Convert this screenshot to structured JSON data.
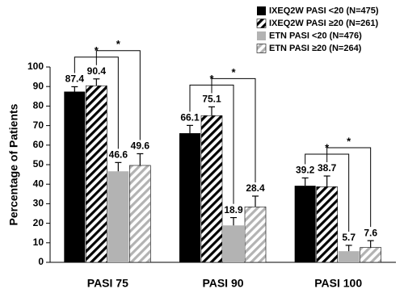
{
  "chart_data": {
    "type": "bar",
    "y_label": "Percentage of Patients",
    "categories": [
      "PASI 75",
      "PASI 90",
      "PASI 100"
    ],
    "series": [
      {
        "name": "IXEQ2W PASI <20 (N=475)",
        "color": "#000000",
        "hatch": false,
        "values": [
          87.4,
          66.1,
          39.2
        ],
        "errors": [
          2.5,
          4,
          4
        ]
      },
      {
        "name": "IXEQ2W PASI ≥20 (N=261)",
        "color": "#000000",
        "hatch": true,
        "values": [
          90.4,
          75.1,
          38.7
        ],
        "errors": [
          3.5,
          4.5,
          5.5
        ]
      },
      {
        "name": "ETN PASI <20 (N=476)",
        "color": "#b3b3b3",
        "hatch": false,
        "values": [
          46.6,
          18.9,
          5.7
        ],
        "errors": [
          4.5,
          4,
          3
        ]
      },
      {
        "name": "ETN PASI ≥20 (N=264)",
        "color": "#b3b3b3",
        "hatch": true,
        "values": [
          49.6,
          28.4,
          7.6
        ],
        "errors": [
          6,
          5.5,
          3.5
        ]
      }
    ],
    "significance": [
      [
        "*",
        "*"
      ],
      [
        "*",
        "*"
      ],
      [
        "*",
        "*"
      ]
    ],
    "ylim": [
      0,
      100
    ],
    "yticks": [
      0,
      10,
      20,
      30,
      40,
      50,
      60,
      70,
      80,
      90,
      100
    ],
    "legend": "top-right"
  }
}
